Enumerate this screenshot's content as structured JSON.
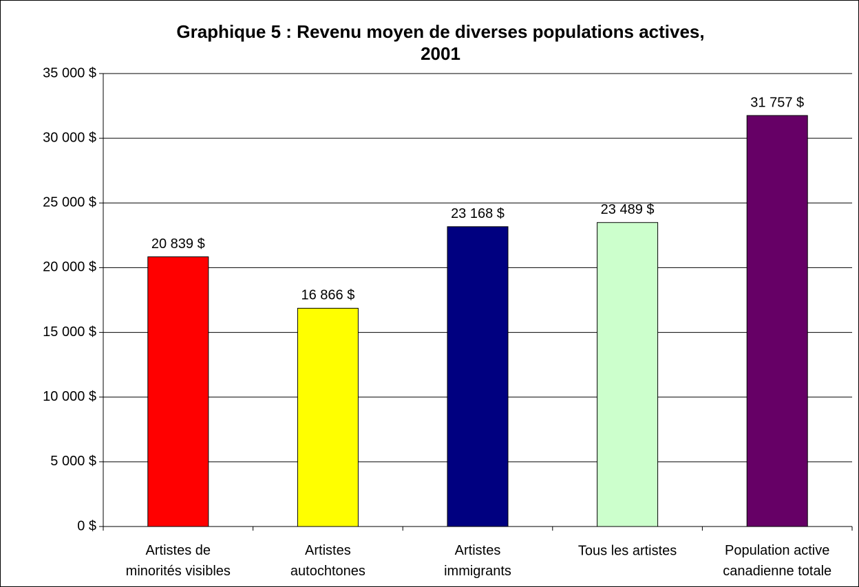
{
  "chart_data": {
    "type": "bar",
    "title": "Graphique 5 : Revenu moyen de diverses populations actives,\n2001",
    "categories": [
      "Artistes de\nminorités visibles",
      "Artistes\nautochtones",
      "Artistes\nimmigrants",
      "Tous les artistes",
      "Population active\ncanadienne totale"
    ],
    "values": [
      20839,
      16866,
      23168,
      23489,
      31757
    ],
    "value_labels": [
      "20 839 $",
      "16 866 $",
      "23 168 $",
      "23 489 $",
      "31 757 $"
    ],
    "colors": [
      "#ff0000",
      "#ffff00",
      "#000080",
      "#ccffcc",
      "#660066"
    ],
    "ylim": [
      0,
      35000
    ],
    "yticks": [
      {
        "value": 0,
        "label": "0 $"
      },
      {
        "value": 5000,
        "label": "5 000 $"
      },
      {
        "value": 10000,
        "label": "10 000 $"
      },
      {
        "value": 15000,
        "label": "15 000 $"
      },
      {
        "value": 20000,
        "label": "20 000 $"
      },
      {
        "value": 25000,
        "label": "25 000 $"
      },
      {
        "value": 30000,
        "label": "30 000 $"
      },
      {
        "value": 35000,
        "label": "35 000 $"
      }
    ],
    "grid": true
  }
}
